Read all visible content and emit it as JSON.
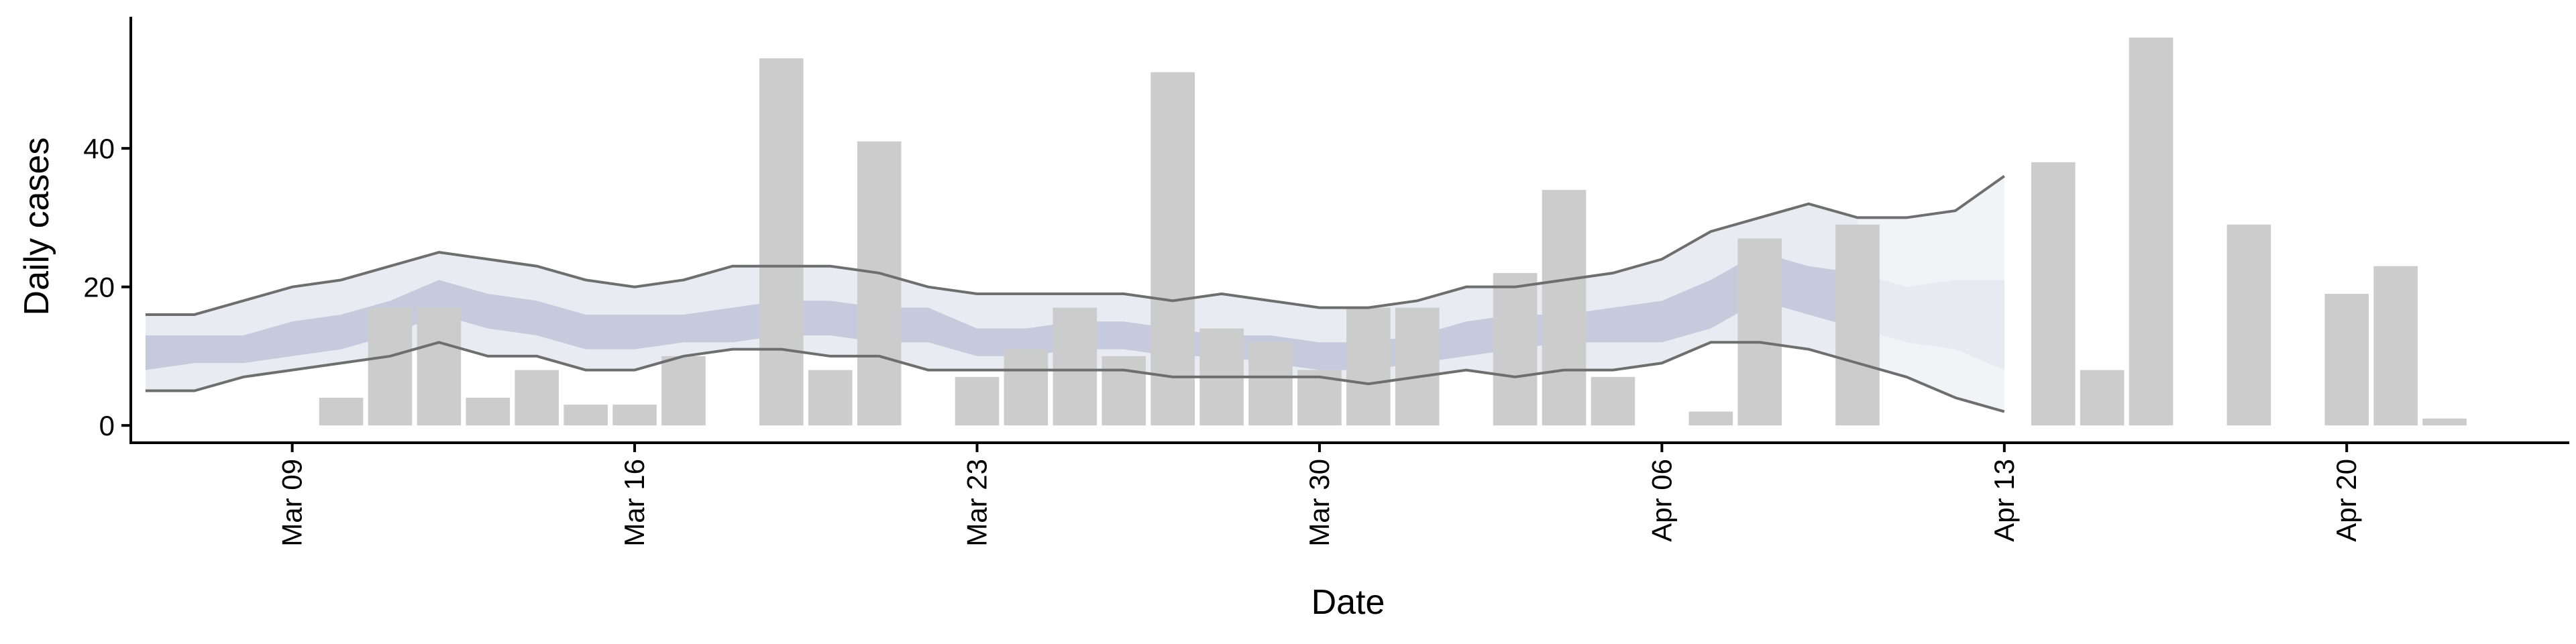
{
  "chart_data": {
    "type": "bar",
    "xlabel": "Date",
    "ylabel": "Daily cases",
    "ylim": [
      -2.5,
      59
    ],
    "yticks": [
      0,
      20,
      40
    ],
    "x_tick_labels": [
      "Mar 09",
      "Mar 16",
      "Mar 23",
      "Mar 30",
      "Apr 06",
      "Apr 13",
      "Apr 20"
    ],
    "grid": false,
    "legend": "none",
    "colors": {
      "bars": "#cccccc",
      "outer_band": "#e9ebf2",
      "inner_band": "#c5cbdc",
      "line": "#6e6e6e",
      "forecast_band": "#f5f6f9"
    },
    "bars": [
      {
        "date": "2020-03-10",
        "value": 4
      },
      {
        "date": "2020-03-11",
        "value": 17
      },
      {
        "date": "2020-03-12",
        "value": 17
      },
      {
        "date": "2020-03-13",
        "value": 4
      },
      {
        "date": "2020-03-14",
        "value": 8
      },
      {
        "date": "2020-03-15",
        "value": 3
      },
      {
        "date": "2020-03-16",
        "value": 3
      },
      {
        "date": "2020-03-17",
        "value": 10
      },
      {
        "date": "2020-03-19",
        "value": 53
      },
      {
        "date": "2020-03-20",
        "value": 8
      },
      {
        "date": "2020-03-21",
        "value": 41
      },
      {
        "date": "2020-03-23",
        "value": 7
      },
      {
        "date": "2020-03-24",
        "value": 11
      },
      {
        "date": "2020-03-25",
        "value": 17
      },
      {
        "date": "2020-03-26",
        "value": 10
      },
      {
        "date": "2020-03-27",
        "value": 51
      },
      {
        "date": "2020-03-28",
        "value": 14
      },
      {
        "date": "2020-03-29",
        "value": 12
      },
      {
        "date": "2020-03-30",
        "value": 8
      },
      {
        "date": "2020-03-31",
        "value": 17
      },
      {
        "date": "2020-04-01",
        "value": 17
      },
      {
        "date": "2020-04-03",
        "value": 22
      },
      {
        "date": "2020-04-04",
        "value": 34
      },
      {
        "date": "2020-04-05",
        "value": 7
      },
      {
        "date": "2020-04-07",
        "value": 2
      },
      {
        "date": "2020-04-08",
        "value": 27
      },
      {
        "date": "2020-04-10",
        "value": 29
      },
      {
        "date": "2020-04-14",
        "value": 38
      },
      {
        "date": "2020-04-15",
        "value": 8
      },
      {
        "date": "2020-04-16",
        "value": 56
      },
      {
        "date": "2020-04-18",
        "value": 29
      },
      {
        "date": "2020-04-20",
        "value": 19
      },
      {
        "date": "2020-04-21",
        "value": 23
      },
      {
        "date": "2020-04-22",
        "value": 1
      }
    ],
    "estimate": {
      "dates": [
        "2020-03-06",
        "2020-03-07",
        "2020-03-08",
        "2020-03-09",
        "2020-03-10",
        "2020-03-11",
        "2020-03-12",
        "2020-03-13",
        "2020-03-14",
        "2020-03-15",
        "2020-03-16",
        "2020-03-17",
        "2020-03-18",
        "2020-03-19",
        "2020-03-20",
        "2020-03-21",
        "2020-03-22",
        "2020-03-23",
        "2020-03-24",
        "2020-03-25",
        "2020-03-26",
        "2020-03-27",
        "2020-03-28",
        "2020-03-29",
        "2020-03-30",
        "2020-03-31",
        "2020-04-01",
        "2020-04-02",
        "2020-04-03",
        "2020-04-04",
        "2020-04-05",
        "2020-04-06",
        "2020-04-07",
        "2020-04-08",
        "2020-04-09",
        "2020-04-10",
        "2020-04-11",
        "2020-04-12",
        "2020-04-13"
      ],
      "upper90": [
        16,
        16,
        18,
        20,
        21,
        23,
        25,
        24,
        23,
        21,
        20,
        21,
        23,
        23,
        23,
        22,
        20,
        19,
        19,
        19,
        19,
        18,
        19,
        18,
        17,
        17,
        18,
        20,
        20,
        21,
        22,
        24,
        28,
        30,
        32,
        30,
        30,
        31,
        36
      ],
      "upper50": [
        13,
        13,
        13,
        15,
        16,
        18,
        21,
        19,
        18,
        16,
        16,
        16,
        17,
        18,
        18,
        17,
        17,
        14,
        14,
        15,
        15,
        14,
        13,
        13,
        12,
        12,
        13,
        15,
        16,
        16,
        17,
        18,
        21,
        25,
        23,
        22,
        20,
        21,
        21
      ],
      "lower50": [
        8,
        9,
        9,
        10,
        11,
        13,
        16,
        14,
        13,
        11,
        11,
        12,
        12,
        13,
        13,
        12,
        12,
        10,
        10,
        11,
        11,
        10,
        10,
        9,
        8,
        8,
        9,
        10,
        11,
        12,
        12,
        12,
        14,
        18,
        16,
        14,
        12,
        11,
        8
      ],
      "lower90": [
        5,
        5,
        7,
        8,
        9,
        10,
        12,
        10,
        10,
        8,
        8,
        10,
        11,
        11,
        10,
        10,
        8,
        8,
        8,
        8,
        8,
        7,
        7,
        7,
        7,
        6,
        7,
        8,
        7,
        8,
        8,
        9,
        12,
        12,
        11,
        9,
        7,
        4,
        2
      ],
      "forecast_start": "2020-04-10"
    }
  }
}
